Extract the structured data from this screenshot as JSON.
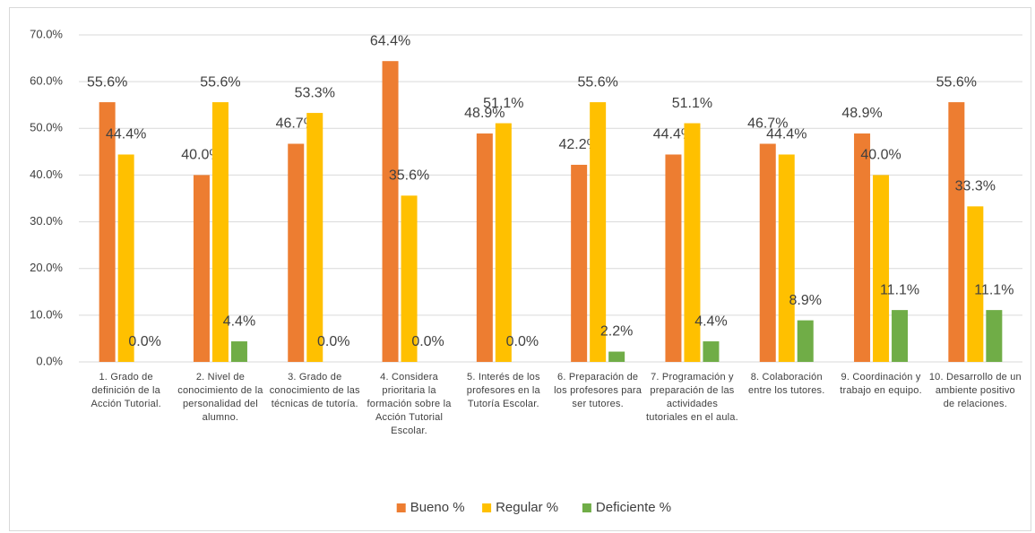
{
  "chart_data": {
    "type": "bar",
    "categories": [
      "1. Grado de definición de la Acción Tutorial.",
      "2. Nivel de conocimiento de la personalidad del alumno.",
      "3. Grado de conocimiento de las técnicas de tutoría.",
      "4. Considera prioritaria la formación sobre la Acción Tutorial Escolar.",
      "5. Interés de los profesores en la Tutoría Escolar.",
      "6. Preparación de los profesores para ser tutores.",
      "7. Programación y preparación de las actividades tutoriales en el aula.",
      "8. Colaboración entre los tutores.",
      "9. Coordinación y trabajo en equipo.",
      "10. Desarrollo de un ambiente positivo de relaciones."
    ],
    "series": [
      {
        "name": "Bueno %",
        "color": "#ed7d31",
        "values": [
          55.6,
          40.0,
          46.7,
          64.4,
          48.9,
          42.2,
          44.4,
          46.7,
          48.9,
          55.6
        ],
        "value_labels": [
          "55.6%",
          "40.0%",
          "46.7%",
          "64.4%",
          "48.9%",
          "42.2%",
          "44.4%",
          "46.7%",
          "48.9%",
          "55.6%"
        ]
      },
      {
        "name": "Regular %",
        "color": "#ffc000",
        "values": [
          44.4,
          55.6,
          53.3,
          35.6,
          51.1,
          55.6,
          51.1,
          44.4,
          40.0,
          33.3
        ],
        "value_labels": [
          "44.4%",
          "55.6%",
          "53.3%",
          "35.6%",
          "51.1%",
          "55.6%",
          "51.1%",
          "44.4%",
          "40.0%",
          "33.3%"
        ]
      },
      {
        "name": "Deficiente %",
        "color": "#70ad47",
        "values": [
          0.0,
          4.4,
          0.0,
          0.0,
          0.0,
          2.2,
          4.4,
          8.9,
          11.1,
          11.1
        ],
        "value_labels": [
          "0.0%",
          "4.4%",
          "0.0%",
          "0.0%",
          "0.0%",
          "2.2%",
          "4.4%",
          "8.9%",
          "11.1%",
          "11.1%"
        ]
      }
    ],
    "ylim": [
      0,
      70
    ],
    "yticks": [
      {
        "value": 0,
        "label": "0.0%"
      },
      {
        "value": 10,
        "label": "10.0%"
      },
      {
        "value": 20,
        "label": "20.0%"
      },
      {
        "value": 30,
        "label": "30.0%"
      },
      {
        "value": 40,
        "label": "40.0%"
      },
      {
        "value": 50,
        "label": "50.0%"
      },
      {
        "value": 60,
        "label": "60.0%"
      },
      {
        "value": 70,
        "label": "70.0%"
      }
    ],
    "grid": true,
    "legend": "bottom"
  }
}
